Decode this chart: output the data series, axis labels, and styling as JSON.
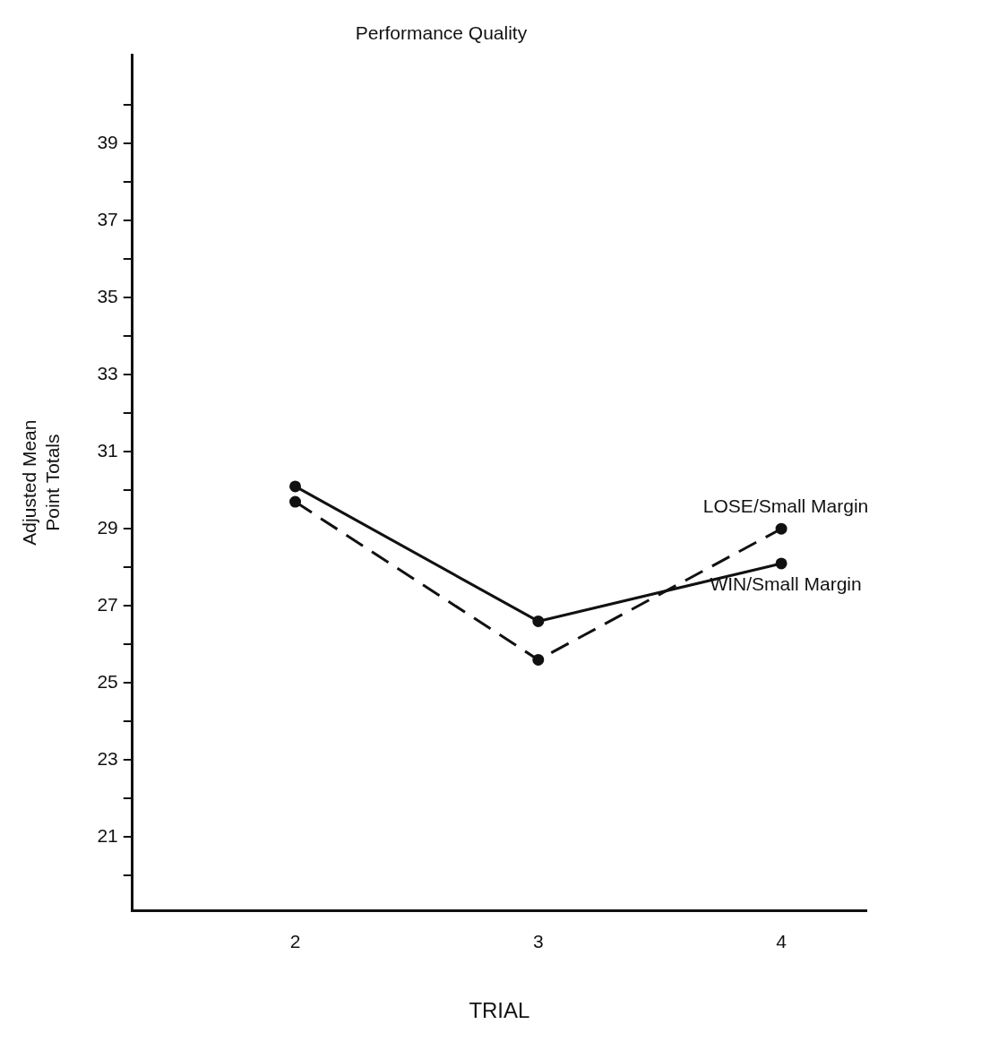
{
  "chart_data": {
    "type": "line",
    "title": "Performance Quality",
    "xlabel": "TRIAL",
    "ylabel": "Adjusted Mean\nPoint Totals",
    "x": [
      2,
      3,
      4
    ],
    "xlim": [
      1.33,
      4.35
    ],
    "xticks": [
      2,
      3,
      4
    ],
    "ylim": [
      19.1,
      41.3
    ],
    "yticks": [
      {
        "value": 20,
        "label": null
      },
      21,
      {
        "value": 22,
        "label": null
      },
      23,
      {
        "value": 24,
        "label": null
      },
      25,
      {
        "value": 26,
        "label": null
      },
      27,
      {
        "value": 28,
        "label": null
      },
      29,
      {
        "value": 30,
        "label": null
      },
      31,
      {
        "value": 32,
        "label": null
      },
      33,
      {
        "value": 34,
        "label": null
      },
      35,
      {
        "value": 36,
        "label": null
      },
      37,
      {
        "value": 38,
        "label": null
      },
      39,
      {
        "value": 40,
        "label": null
      }
    ],
    "series": [
      {
        "name": "LOSE/Small Margin",
        "color": "#111111",
        "values": [
          29.7,
          25.6,
          29.0
        ],
        "line_style": "dashed"
      },
      {
        "name": "WIN/Small Margin",
        "color": "#111111",
        "values": [
          30.1,
          26.6,
          28.1
        ],
        "line_style": "solid"
      }
    ],
    "marker": "circle",
    "grid": false,
    "legend": false
  }
}
